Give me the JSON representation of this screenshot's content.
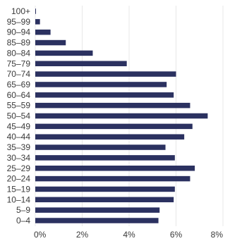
{
  "chart_data": {
    "type": "bar",
    "orientation": "horizontal",
    "categories": [
      "100+",
      "95–99",
      "90–94",
      "85–89",
      "80–84",
      "75–79",
      "70–74",
      "65–69",
      "60–64",
      "55–59",
      "50–54",
      "45–49",
      "40–44",
      "35–39",
      "30–34",
      "25–29",
      "20–24",
      "15–19",
      "10–14",
      "5–9",
      "0–4"
    ],
    "values": [
      0.03,
      0.2,
      0.65,
      1.3,
      2.45,
      3.9,
      6.0,
      5.6,
      5.9,
      6.6,
      7.35,
      6.7,
      6.35,
      5.55,
      5.95,
      6.8,
      6.6,
      5.95,
      5.9,
      5.3,
      5.25
    ],
    "xlim": [
      0,
      8
    ],
    "xticks": [
      "0%",
      "2%",
      "4%",
      "6%",
      "8%"
    ],
    "xtick_values": [
      0,
      2,
      4,
      6,
      8
    ],
    "grid": true,
    "colors": {
      "bar": "#2b3160",
      "grid": "#e8e8e8"
    },
    "title": "",
    "xlabel": "",
    "ylabel": ""
  }
}
